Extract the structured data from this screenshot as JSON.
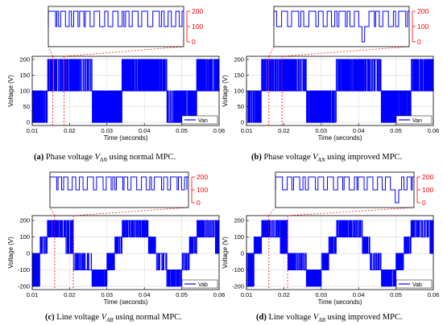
{
  "colors": {
    "trace": "#0000ff",
    "zoom_axis": "#ff0000",
    "guide": "#ff0000",
    "axis": "#000000",
    "grid": "#d9d9d9"
  },
  "panels": [
    {
      "id": "a",
      "caption": {
        "letter": "(a)",
        "text": "Phase voltage",
        "var": "V",
        "sub": "AN",
        "tail": "using normal MPC."
      },
      "main": {
        "type": "line",
        "ylabel": "Voltage (V)",
        "xlabel": "Time (seconds)",
        "xlim": [
          0.01,
          0.06
        ],
        "ylim": [
          -10,
          210
        ],
        "xticks": [
          "0.01",
          "0.02",
          "0.03",
          "0.04",
          "0.05",
          "0.06"
        ],
        "yticks": [
          0,
          50,
          100,
          150,
          200
        ],
        "legend": "Van",
        "legend_position": "bottom-right",
        "zoom_range": [
          0.0155,
          0.0185
        ]
      },
      "zoom": {
        "yticks": [
          0,
          100,
          200
        ]
      }
    },
    {
      "id": "b",
      "caption": {
        "letter": "(b)",
        "text": "Phase voltage",
        "var": "V",
        "sub": "AN",
        "tail": "using improved MPC."
      },
      "main": {
        "type": "line",
        "ylabel": "Voltage (V)",
        "xlabel": "Time (seconds)",
        "xlim": [
          0.01,
          0.06
        ],
        "ylim": [
          -10,
          210
        ],
        "xticks": [
          "0.01",
          "0.02",
          "0.03",
          "0.04",
          "0.05",
          "0.06"
        ],
        "yticks": [
          0,
          50,
          100,
          150,
          200
        ],
        "legend": "Van",
        "legend_position": "bottom-right",
        "zoom_range": [
          0.016,
          0.0195
        ]
      },
      "zoom": {
        "yticks": [
          0,
          100,
          200
        ]
      }
    },
    {
      "id": "c",
      "caption": {
        "letter": "(c)",
        "text": "Line voltage",
        "var": "V",
        "sub": "AB",
        "tail": "using normal MPC."
      },
      "main": {
        "type": "line",
        "ylabel": "Voltage (V)",
        "xlabel": "Time (seconds)",
        "xlim": [
          0.01,
          0.06
        ],
        "ylim": [
          -220,
          230
        ],
        "xticks": [
          "0.01",
          "0.02",
          "0.03",
          "0.04",
          "0.05",
          "0.06"
        ],
        "yticks": [
          -200,
          -100,
          0,
          100,
          200
        ],
        "legend": "Vab",
        "legend_position": "bottom-right",
        "zoom_range": [
          0.016,
          0.021
        ]
      },
      "zoom": {
        "yticks": [
          0,
          100,
          200
        ]
      }
    },
    {
      "id": "d",
      "caption": {
        "letter": "(d)",
        "text": "Line voltage",
        "var": "V",
        "sub": "AB",
        "tail": "using improved MPC."
      },
      "main": {
        "type": "line",
        "ylabel": "Voltage (V)",
        "xlabel": "Time (seconds)",
        "xlim": [
          0.01,
          0.06
        ],
        "ylim": [
          -220,
          230
        ],
        "xticks": [
          "0.01",
          "0.02",
          "0.03",
          "0.04",
          "0.05",
          "0.06"
        ],
        "yticks": [
          -200,
          -100,
          0,
          100,
          200
        ],
        "legend": "Vab",
        "legend_position": "bottom-right",
        "zoom_range": [
          0.016,
          0.021
        ]
      },
      "zoom": {
        "yticks": [
          0,
          100,
          200
        ]
      }
    }
  ],
  "chart_data": [
    {
      "type": "line",
      "panel": "a",
      "ylabel": "Voltage (V)",
      "xlabel": "Time (seconds)",
      "xlim": [
        0.01,
        0.06
      ],
      "ylim": [
        -10,
        210
      ],
      "series": [
        {
          "name": "Van",
          "x": [
            0.01,
            0.012,
            0.014,
            0.016,
            0.019,
            0.021,
            0.023,
            0.026,
            0.028,
            0.03,
            0.032,
            0.034,
            0.036,
            0.039,
            0.041,
            0.043,
            0.046,
            0.048,
            0.05,
            0.052,
            0.054,
            0.056,
            0.059,
            0.06
          ],
          "y": [
            0,
            100,
            100,
            200,
            200,
            100,
            200,
            100,
            100,
            0,
            0,
            100,
            200,
            200,
            100,
            200,
            100,
            100,
            0,
            0,
            100,
            200,
            200,
            100
          ]
        }
      ]
    },
    {
      "type": "line",
      "panel": "b",
      "ylabel": "Voltage (V)",
      "xlabel": "Time (seconds)",
      "xlim": [
        0.01,
        0.06
      ],
      "ylim": [
        -10,
        210
      ],
      "series": [
        {
          "name": "Van",
          "x": [
            0.01,
            0.012,
            0.014,
            0.016,
            0.019,
            0.021,
            0.023,
            0.026,
            0.028,
            0.03,
            0.032,
            0.034,
            0.036,
            0.039,
            0.041,
            0.043,
            0.046,
            0.048,
            0.05,
            0.052,
            0.054,
            0.056,
            0.059,
            0.06
          ],
          "y": [
            0,
            100,
            100,
            200,
            200,
            100,
            200,
            100,
            100,
            0,
            0,
            100,
            200,
            200,
            100,
            200,
            100,
            100,
            0,
            0,
            100,
            200,
            200,
            100
          ]
        }
      ]
    },
    {
      "type": "line",
      "panel": "c",
      "ylabel": "Voltage (V)",
      "xlabel": "Time (seconds)",
      "xlim": [
        0.01,
        0.06
      ],
      "ylim": [
        -220,
        230
      ],
      "series": [
        {
          "name": "Vab",
          "x": [
            0.01,
            0.012,
            0.014,
            0.016,
            0.019,
            0.021,
            0.023,
            0.026,
            0.028,
            0.03,
            0.032,
            0.034,
            0.036,
            0.039,
            0.041,
            0.043,
            0.046,
            0.048,
            0.05,
            0.052,
            0.054,
            0.056,
            0.059,
            0.06
          ],
          "y": [
            -200,
            0,
            100,
            200,
            200,
            0,
            -100,
            -100,
            -200,
            -100,
            0,
            100,
            200,
            200,
            100,
            0,
            -100,
            -200,
            -100,
            0,
            100,
            200,
            200,
            0
          ]
        }
      ]
    },
    {
      "type": "line",
      "panel": "d",
      "ylabel": "Voltage (V)",
      "xlabel": "Time (seconds)",
      "xlim": [
        0.01,
        0.06
      ],
      "ylim": [
        -220,
        230
      ],
      "series": [
        {
          "name": "Vab",
          "x": [
            0.01,
            0.012,
            0.014,
            0.016,
            0.019,
            0.021,
            0.023,
            0.026,
            0.028,
            0.03,
            0.032,
            0.034,
            0.036,
            0.039,
            0.041,
            0.043,
            0.046,
            0.048,
            0.05,
            0.052,
            0.054,
            0.056,
            0.059,
            0.06
          ],
          "y": [
            -200,
            0,
            100,
            200,
            200,
            0,
            -100,
            -100,
            -200,
            -100,
            0,
            100,
            200,
            200,
            100,
            0,
            -100,
            -200,
            -100,
            0,
            100,
            200,
            200,
            0
          ]
        }
      ]
    }
  ]
}
